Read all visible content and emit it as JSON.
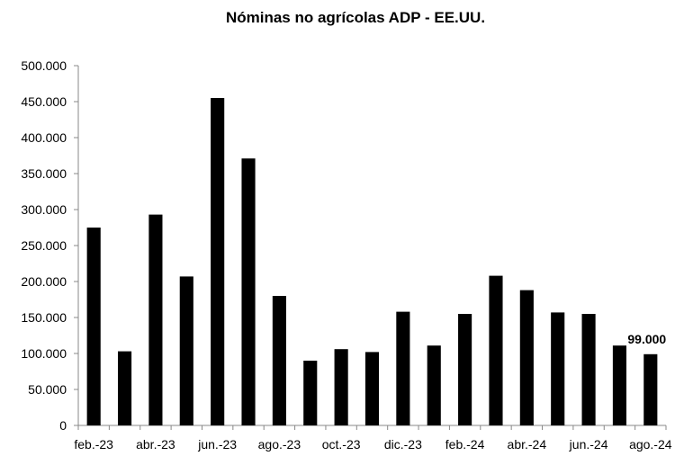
{
  "chart_data": {
    "type": "bar",
    "title": "Nóminas no agrícolas ADP - EE.UU.",
    "xlabel": "",
    "ylabel": "",
    "categories": [
      "feb.-23",
      "mar.-23",
      "abr.-23",
      "may.-23",
      "jun.-23",
      "jul.-23",
      "ago.-23",
      "sep.-23",
      "oct.-23",
      "nov.-23",
      "dic.-23",
      "ene.-24",
      "feb.-24",
      "mar.-24",
      "abr.-24",
      "may.-24",
      "jun.-24",
      "jul.-24",
      "ago.-24"
    ],
    "visible_category_labels": [
      "feb.-23",
      "abr.-23",
      "jun.-23",
      "ago.-23",
      "oct.-23",
      "dic.-23",
      "feb.-24",
      "abr.-24",
      "jun.-24",
      "ago.-24"
    ],
    "values": [
      275000,
      103000,
      293000,
      207000,
      455000,
      371000,
      180000,
      90000,
      106000,
      102000,
      158000,
      111000,
      155000,
      208000,
      188000,
      157000,
      155000,
      111000,
      99000
    ],
    "ylim": [
      0,
      500000
    ],
    "yticks": [
      0,
      50000,
      100000,
      150000,
      200000,
      250000,
      300000,
      350000,
      400000,
      450000,
      500000
    ],
    "ytick_labels": [
      "0",
      "50.000",
      "100.000",
      "150.000",
      "200.000",
      "250.000",
      "300.000",
      "350.000",
      "400.000",
      "450.000",
      "500.000"
    ],
    "grid": false,
    "legend": "none",
    "bar_color": "#000000",
    "annotations": [
      {
        "category": "ago.-24",
        "text": "99.000"
      }
    ]
  }
}
